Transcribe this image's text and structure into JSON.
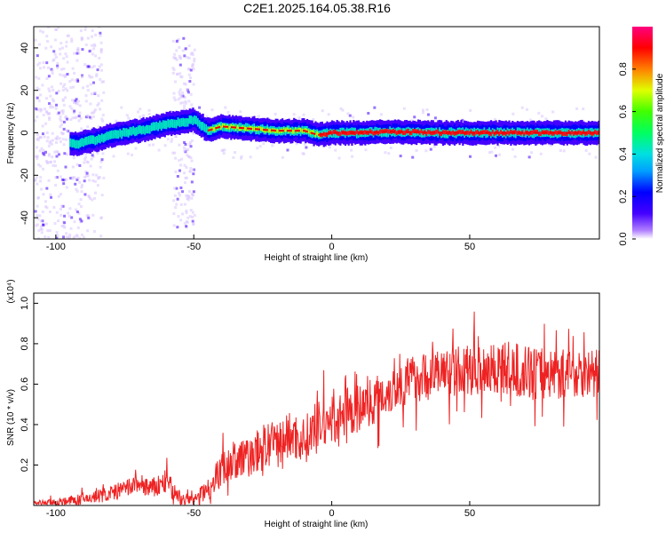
{
  "title": "C2E1.2025.164.05.38.R16",
  "colors": {
    "top_line": "#ee0000",
    "snr_line": "#ee2222",
    "colorbar": [
      "#4400ff",
      "#0000ff",
      "#00a0ff",
      "#00e0e0",
      "#00ff60",
      "#40ff00",
      "#e0ff00",
      "#ff8000",
      "#ff0000",
      "#ff0080"
    ]
  },
  "chart_data": [
    {
      "type": "heatmap",
      "title": "C2E1.2025.164.05.38.R16",
      "xlabel": "Height of straight line (km)",
      "ylabel": "Frequency (Hz)",
      "xlim": [
        -108,
        97
      ],
      "ylim": [
        -50,
        50
      ],
      "x_ticks": [
        "-100",
        "-50",
        "0",
        "50"
      ],
      "y_ticks": [
        "-40",
        "-20",
        "0",
        "20",
        "40"
      ],
      "colorbar": {
        "label": "Normalized spectral amplitude",
        "range": [
          0,
          1
        ],
        "ticks": [
          "0.0",
          "0.2",
          "0.4",
          "0.6",
          "0.8"
        ]
      },
      "ridge": {
        "x": [
          -92,
          -85,
          -80,
          -70,
          -60,
          -50,
          -45,
          -40,
          -30,
          -20,
          -10,
          -5,
          0,
          10,
          20,
          40,
          60,
          80,
          95
        ],
        "y": [
          -5,
          -3,
          -1,
          1,
          4,
          6,
          1,
          3,
          2,
          1,
          1,
          -1,
          0,
          0,
          0.5,
          0,
          0,
          0,
          0
        ]
      }
    },
    {
      "type": "line",
      "xlabel": "Height of straight line (km)",
      "ylabel": "SNR (10 * v/v)",
      "y_multiplier": "(x10⁴)",
      "xlim": [
        -108,
        97
      ],
      "ylim": [
        0,
        1.05
      ],
      "x_ticks": [
        "-100",
        "-50",
        "0",
        "50"
      ],
      "y_ticks": [
        "0.2",
        "0.4",
        "0.6",
        "0.8",
        "1.0"
      ],
      "envelope": {
        "x": [
          -108,
          -100,
          -90,
          -80,
          -75,
          -70,
          -65,
          -60,
          -55,
          -50,
          -45,
          -40,
          -35,
          -30,
          -25,
          -20,
          -15,
          -10,
          -5,
          0,
          5,
          10,
          15,
          20,
          25,
          30,
          35,
          40,
          45,
          50,
          55,
          60,
          65,
          70,
          75,
          80,
          85,
          90,
          97
        ],
        "y": [
          0.01,
          0.015,
          0.03,
          0.06,
          0.08,
          0.11,
          0.08,
          0.12,
          0.03,
          0.03,
          0.08,
          0.18,
          0.22,
          0.24,
          0.28,
          0.3,
          0.35,
          0.32,
          0.4,
          0.42,
          0.45,
          0.48,
          0.52,
          0.56,
          0.6,
          0.63,
          0.64,
          0.66,
          0.66,
          0.67,
          0.68,
          0.68,
          0.67,
          0.66,
          0.65,
          0.66,
          0.65,
          0.66,
          0.65
        ]
      },
      "noise_amplitude": {
        "x": [
          -108,
          -80,
          -60,
          -50,
          -40,
          -20,
          0,
          20,
          40,
          60,
          97
        ],
        "y": [
          0.012,
          0.04,
          0.06,
          0.02,
          0.09,
          0.12,
          0.12,
          0.12,
          0.12,
          0.14,
          0.12
        ]
      }
    }
  ]
}
